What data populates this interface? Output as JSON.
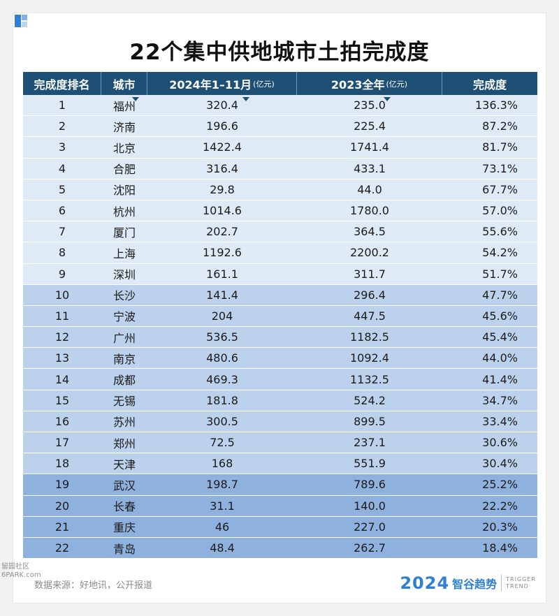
{
  "title": "22个集中供地城市土拍完成度",
  "headers": {
    "rank": "完成度排名",
    "city": "城市",
    "y2024": "2024年1–11月",
    "y2024_unit": "(亿元)",
    "y2023": "2023全年",
    "y2023_unit": "(亿元)",
    "completion": "完成度"
  },
  "chart_data": {
    "type": "table",
    "title": "22个集中供地城市土拍完成度",
    "columns": [
      "完成度排名",
      "城市",
      "2024年1–11月(亿元)",
      "2023全年(亿元)",
      "完成度"
    ],
    "rows": [
      [
        "1",
        "福州",
        "320.4",
        "235.0",
        "136.3%"
      ],
      [
        "2",
        "济南",
        "196.6",
        "225.4",
        "87.2%"
      ],
      [
        "3",
        "北京",
        "1422.4",
        "1741.4",
        "81.7%"
      ],
      [
        "4",
        "合肥",
        "316.4",
        "433.1",
        "73.1%"
      ],
      [
        "5",
        "沈阳",
        "29.8",
        "44.0",
        "67.7%"
      ],
      [
        "6",
        "杭州",
        "1014.6",
        "1780.0",
        "57.0%"
      ],
      [
        "7",
        "厦门",
        "202.7",
        "364.5",
        "55.6%"
      ],
      [
        "8",
        "上海",
        "1192.6",
        "2200.2",
        "54.2%"
      ],
      [
        "9",
        "深圳",
        "161.1",
        "311.7",
        "51.7%"
      ],
      [
        "10",
        "长沙",
        "141.4",
        "296.4",
        "47.7%"
      ],
      [
        "11",
        "宁波",
        "204",
        "447.5",
        "45.6%"
      ],
      [
        "12",
        "广州",
        "536.5",
        "1182.5",
        "45.4%"
      ],
      [
        "13",
        "南京",
        "480.6",
        "1092.4",
        "44.0%"
      ],
      [
        "14",
        "成都",
        "469.3",
        "1132.5",
        "41.4%"
      ],
      [
        "15",
        "无锡",
        "181.8",
        "524.2",
        "34.7%"
      ],
      [
        "16",
        "苏州",
        "300.5",
        "899.5",
        "33.4%"
      ],
      [
        "17",
        "郑州",
        "72.5",
        "237.1",
        "30.6%"
      ],
      [
        "18",
        "天津",
        "168",
        "551.9",
        "30.4%"
      ],
      [
        "19",
        "武汉",
        "198.7",
        "789.6",
        "25.2%"
      ],
      [
        "20",
        "长春",
        "31.1",
        "140.0",
        "22.2%"
      ],
      [
        "21",
        "重庆",
        "46",
        "227.0",
        "20.3%"
      ],
      [
        "22",
        "青岛",
        "48.4",
        "262.7",
        "18.4%"
      ]
    ]
  },
  "footer": {
    "source": "数据来源：好地讯，公开报道",
    "brand_year": "2024",
    "brand_name": "智谷趋势",
    "brand_en1": "TRIGGER",
    "brand_en2": "TREND",
    "watermark1": "留园社区",
    "watermark2": "6PARK.com"
  },
  "colors": {
    "header_bg": "#1e4f74",
    "tier1": "#dfeaf7",
    "tier2": "#bcd2ec",
    "tier3": "#8fb1de",
    "brand": "#2f7fd3"
  }
}
